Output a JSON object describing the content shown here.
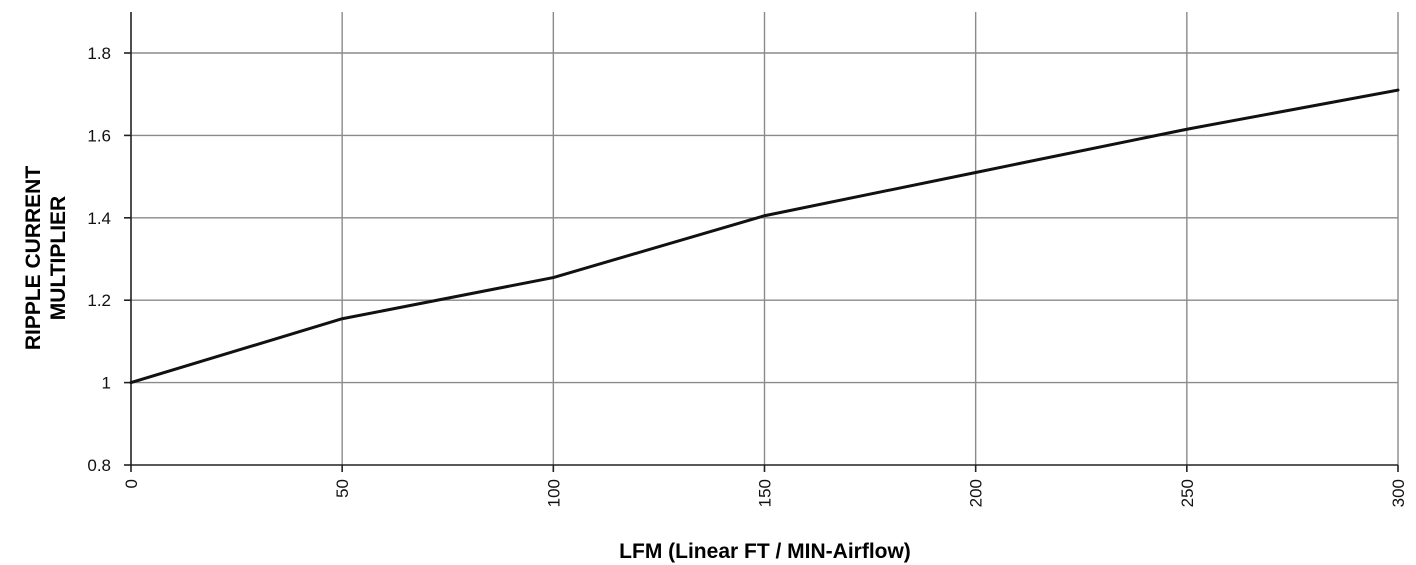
{
  "chart_data": {
    "type": "line",
    "xlabel": "LFM (Linear FT / MIN-Airflow)",
    "ylabel_lines": [
      "RIPPLE CURRENT",
      "MULTIPLIER"
    ],
    "xlim": [
      0,
      300
    ],
    "ylim": [
      0.8,
      1.8
    ],
    "x_ticks": [
      0,
      50,
      100,
      150,
      200,
      250,
      300
    ],
    "y_ticks": [
      0.8,
      1,
      1.2,
      1.4,
      1.6,
      1.8
    ],
    "x_tick_labels": [
      "0",
      "50",
      "100",
      "150",
      "200",
      "250",
      "300"
    ],
    "y_tick_labels": [
      "0.8",
      "1",
      "1.2",
      "1.4",
      "1.6",
      "1.8"
    ],
    "grid": true,
    "series": [
      {
        "x": [
          0,
          50,
          100,
          150,
          200,
          250,
          300
        ],
        "y": [
          1.0,
          1.155,
          1.255,
          1.405,
          1.51,
          1.615,
          1.71
        ],
        "color": "#111111"
      }
    ]
  }
}
